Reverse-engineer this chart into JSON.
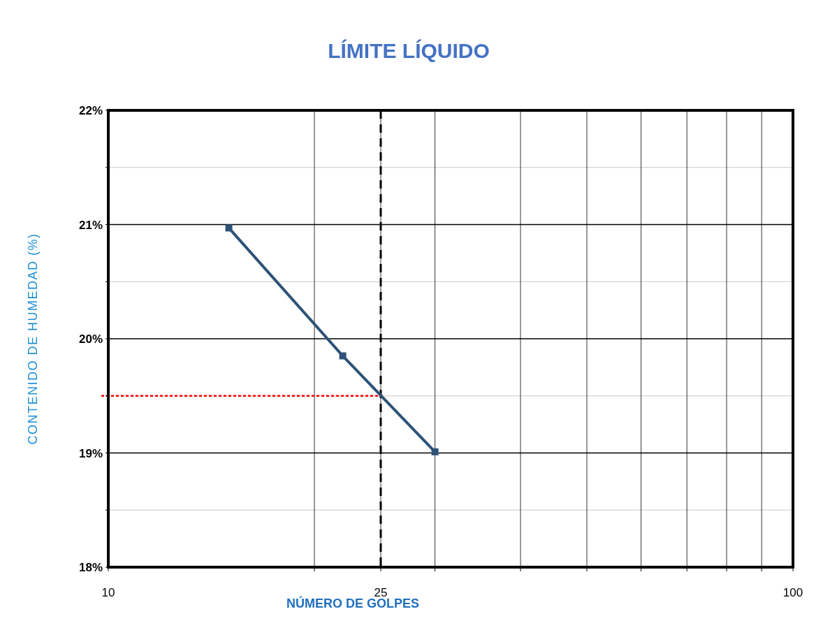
{
  "chart_data": {
    "type": "line",
    "title": "LÍMITE LÍQUIDO",
    "xlabel": "NÚMERO DE GOLPES",
    "ylabel": "CONTENIDO DE HUMEDAD (%)",
    "log": "x",
    "x": [
      15,
      22,
      30
    ],
    "series": [
      {
        "color": "#2e5277",
        "values": [
          20.97,
          19.85,
          19.01
        ]
      }
    ],
    "marker": "square",
    "line_style": "solid",
    "grid": true,
    "xlim": [
      10,
      100
    ],
    "xticks": [
      10,
      {
        "value": 20,
        "label": null
      },
      25,
      {
        "value": 30,
        "label": null
      },
      {
        "value": 40,
        "label": null
      },
      {
        "value": 50,
        "label": null
      },
      {
        "value": 60,
        "label": null
      },
      {
        "value": 70,
        "label": null
      },
      {
        "value": 80,
        "label": null
      },
      {
        "value": 90,
        "label": null
      },
      100
    ],
    "ylim": [
      18,
      22
    ],
    "yticks": [
      {
        "value": 18,
        "label": "18%"
      },
      {
        "value": 18.5,
        "label": null
      },
      {
        "value": 19,
        "label": "19%"
      },
      {
        "value": 19.5,
        "label": null
      },
      {
        "value": 20,
        "label": "20%"
      },
      {
        "value": 20.5,
        "label": null
      },
      {
        "value": 21,
        "label": "21%"
      },
      {
        "value": 21.5,
        "label": null
      },
      {
        "value": 22,
        "label": "22%"
      }
    ],
    "ref_lines": [
      {
        "axis": "x",
        "value": 25,
        "color": "#000000",
        "line_style": "dashed"
      },
      {
        "axis": "y",
        "value": 19.5,
        "color": "#ff0000",
        "line_style": "dotted"
      }
    ]
  }
}
